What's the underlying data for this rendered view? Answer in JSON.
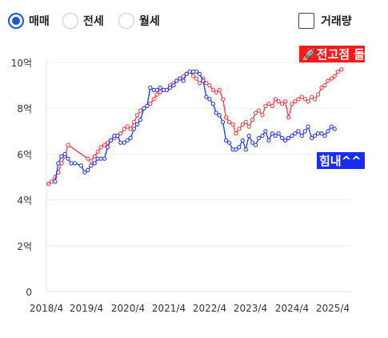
{
  "controls": {
    "radios": [
      {
        "label": "매매",
        "selected": true
      },
      {
        "label": "전세",
        "selected": false
      },
      {
        "label": "월세",
        "selected": false
      }
    ],
    "checkbox": {
      "label": "거래량",
      "checked": false
    }
  },
  "colors": {
    "sale": "#f0414b",
    "jeonse": "#2c3ef0",
    "accent": "#1a55e8"
  },
  "chart_data": {
    "type": "line",
    "x_tick_labels": [
      "2018/4",
      "2019/4",
      "2020/4",
      "2021/4",
      "2022/4",
      "2023/4",
      "2024/4",
      "2025/4"
    ],
    "y_tick_labels": [
      "0",
      "2억",
      "4억",
      "6억",
      "8억",
      "10억"
    ],
    "ylim": [
      0,
      10
    ],
    "xlim": [
      2018.2,
      2025.9
    ],
    "grid": true,
    "annotations": [
      {
        "text": "🚀전고점 돌파",
        "series": 0,
        "bg": "#ff1a1a"
      },
      {
        "text": "힘내^^",
        "series": 1,
        "bg": "#1a2cf0"
      }
    ],
    "series": [
      {
        "points": [
          [
            2018.25,
            4.7
          ],
          [
            2018.33,
            4.8
          ],
          [
            2018.42,
            5.0
          ],
          [
            2018.5,
            5.2
          ],
          [
            2018.58,
            5.6
          ],
          [
            2018.67,
            5.9
          ],
          [
            2018.75,
            6.4
          ],
          [
            2019.25,
            5.8
          ],
          [
            2019.33,
            5.7
          ],
          [
            2019.42,
            5.9
          ],
          [
            2019.5,
            6.1
          ],
          [
            2019.58,
            6.3
          ],
          [
            2019.67,
            6.4
          ],
          [
            2019.75,
            6.5
          ],
          [
            2019.83,
            6.6
          ],
          [
            2019.92,
            6.7
          ],
          [
            2020.0,
            6.8
          ],
          [
            2020.08,
            6.9
          ],
          [
            2020.17,
            7.1
          ],
          [
            2020.25,
            7.2
          ],
          [
            2020.33,
            7.1
          ],
          [
            2020.42,
            7.4
          ],
          [
            2020.5,
            7.7
          ],
          [
            2020.58,
            7.9
          ],
          [
            2020.67,
            8.0
          ],
          [
            2020.75,
            8.1
          ],
          [
            2020.83,
            8.2
          ],
          [
            2020.92,
            8.4
          ],
          [
            2021.0,
            8.6
          ],
          [
            2021.08,
            8.7
          ],
          [
            2021.17,
            8.8
          ],
          [
            2021.25,
            8.8
          ],
          [
            2021.33,
            9.0
          ],
          [
            2021.42,
            9.1
          ],
          [
            2021.5,
            9.2
          ],
          [
            2021.58,
            9.3
          ],
          [
            2021.67,
            9.4
          ],
          [
            2021.75,
            9.5
          ],
          [
            2021.83,
            9.6
          ],
          [
            2021.92,
            9.4
          ],
          [
            2022.0,
            9.3
          ],
          [
            2022.08,
            9.1
          ],
          [
            2022.17,
            9.3
          ],
          [
            2022.25,
            9.1
          ],
          [
            2022.33,
            9.0
          ],
          [
            2022.42,
            8.8
          ],
          [
            2022.5,
            8.7
          ],
          [
            2022.58,
            8.8
          ],
          [
            2022.67,
            8.4
          ],
          [
            2022.75,
            7.6
          ],
          [
            2022.83,
            7.4
          ],
          [
            2022.92,
            7.3
          ],
          [
            2023.0,
            6.9
          ],
          [
            2023.08,
            7.1
          ],
          [
            2023.17,
            7.3
          ],
          [
            2023.25,
            7.4
          ],
          [
            2023.33,
            7.2
          ],
          [
            2023.42,
            7.5
          ],
          [
            2023.5,
            7.8
          ],
          [
            2023.58,
            7.9
          ],
          [
            2023.67,
            7.7
          ],
          [
            2023.75,
            8.1
          ],
          [
            2023.83,
            8.2
          ],
          [
            2023.92,
            8.1
          ],
          [
            2024.0,
            8.4
          ],
          [
            2024.08,
            8.3
          ],
          [
            2024.17,
            8.2
          ],
          [
            2024.25,
            8.3
          ],
          [
            2024.33,
            7.6
          ],
          [
            2024.42,
            8.2
          ],
          [
            2024.5,
            8.3
          ],
          [
            2024.58,
            8.4
          ],
          [
            2024.67,
            8.5
          ],
          [
            2024.75,
            8.4
          ],
          [
            2024.83,
            8.3
          ],
          [
            2024.92,
            8.5
          ],
          [
            2025.0,
            8.4
          ],
          [
            2025.08,
            8.6
          ],
          [
            2025.17,
            8.9
          ],
          [
            2025.25,
            9.0
          ],
          [
            2025.33,
            9.2
          ],
          [
            2025.42,
            9.3
          ],
          [
            2025.5,
            9.4
          ],
          [
            2025.58,
            9.6
          ],
          [
            2025.67,
            9.7
          ]
        ]
      },
      {
        "points": [
          [
            2018.42,
            4.8
          ],
          [
            2018.5,
            5.6
          ],
          [
            2018.58,
            5.9
          ],
          [
            2018.67,
            6.0
          ],
          [
            2018.75,
            5.8
          ],
          [
            2018.83,
            5.6
          ],
          [
            2018.92,
            5.6
          ],
          [
            2019.08,
            5.5
          ],
          [
            2019.17,
            5.2
          ],
          [
            2019.25,
            5.3
          ],
          [
            2019.33,
            5.5
          ],
          [
            2019.42,
            5.6
          ],
          [
            2019.5,
            5.8
          ],
          [
            2019.58,
            5.8
          ],
          [
            2019.67,
            5.8
          ],
          [
            2019.75,
            6.3
          ],
          [
            2019.83,
            6.6
          ],
          [
            2019.92,
            6.8
          ],
          [
            2020.0,
            6.8
          ],
          [
            2020.08,
            6.5
          ],
          [
            2020.17,
            6.5
          ],
          [
            2020.25,
            6.6
          ],
          [
            2020.33,
            6.7
          ],
          [
            2020.42,
            7.1
          ],
          [
            2020.5,
            7.3
          ],
          [
            2020.58,
            7.5
          ],
          [
            2020.67,
            8.0
          ],
          [
            2020.75,
            8.1
          ],
          [
            2020.83,
            8.9
          ],
          [
            2020.92,
            8.8
          ],
          [
            2021.0,
            8.8
          ],
          [
            2021.08,
            8.9
          ],
          [
            2021.17,
            8.8
          ],
          [
            2021.25,
            8.8
          ],
          [
            2021.33,
            8.9
          ],
          [
            2021.42,
            9.0
          ],
          [
            2021.5,
            9.2
          ],
          [
            2021.58,
            9.3
          ],
          [
            2021.67,
            9.2
          ],
          [
            2021.75,
            9.5
          ],
          [
            2021.83,
            9.6
          ],
          [
            2021.92,
            9.6
          ],
          [
            2022.0,
            9.6
          ],
          [
            2022.08,
            9.5
          ],
          [
            2022.17,
            9.2
          ],
          [
            2022.25,
            8.5
          ],
          [
            2022.33,
            8.4
          ],
          [
            2022.42,
            8.2
          ],
          [
            2022.5,
            7.8
          ],
          [
            2022.58,
            7.7
          ],
          [
            2022.67,
            7.4
          ],
          [
            2022.75,
            6.6
          ],
          [
            2022.83,
            6.5
          ],
          [
            2022.92,
            6.2
          ],
          [
            2023.0,
            6.2
          ],
          [
            2023.08,
            6.3
          ],
          [
            2023.17,
            6.6
          ],
          [
            2023.25,
            6.2
          ],
          [
            2023.33,
            6.8
          ],
          [
            2023.42,
            6.5
          ],
          [
            2023.5,
            6.4
          ],
          [
            2023.58,
            6.7
          ],
          [
            2023.67,
            6.8
          ],
          [
            2023.75,
            7.0
          ],
          [
            2023.83,
            6.6
          ],
          [
            2023.92,
            6.9
          ],
          [
            2024.0,
            6.8
          ],
          [
            2024.08,
            6.9
          ],
          [
            2024.17,
            6.7
          ],
          [
            2024.25,
            6.6
          ],
          [
            2024.33,
            6.7
          ],
          [
            2024.42,
            6.8
          ],
          [
            2024.5,
            6.9
          ],
          [
            2024.58,
            7.0
          ],
          [
            2024.67,
            6.8
          ],
          [
            2024.75,
            7.0
          ],
          [
            2024.83,
            7.2
          ],
          [
            2024.92,
            6.7
          ],
          [
            2025.0,
            6.8
          ],
          [
            2025.08,
            6.9
          ],
          [
            2025.17,
            6.9
          ],
          [
            2025.25,
            6.8
          ],
          [
            2025.33,
            7.0
          ],
          [
            2025.42,
            7.2
          ],
          [
            2025.5,
            7.1
          ]
        ]
      }
    ]
  }
}
